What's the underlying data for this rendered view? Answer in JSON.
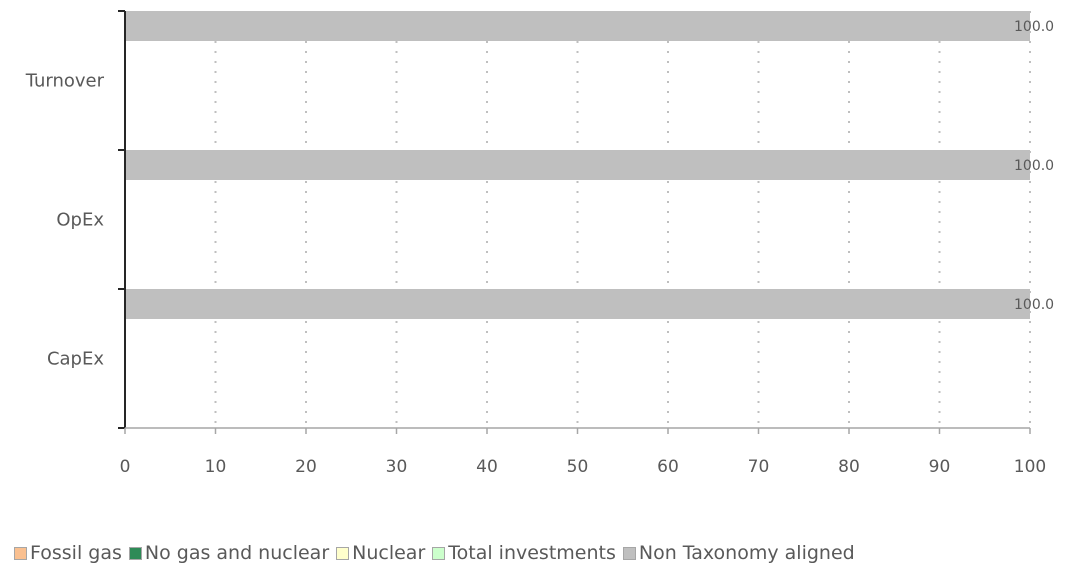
{
  "chart_data": {
    "type": "bar",
    "orientation": "horizontal",
    "stacked": true,
    "categories": [
      "Turnover",
      "OpEx",
      "CapEx"
    ],
    "series": [
      {
        "name": "Fossil gas",
        "color": "#fac090",
        "values": [
          0,
          0,
          0
        ]
      },
      {
        "name": "No gas and nuclear",
        "color": "#2e8b57",
        "values": [
          0,
          0,
          0
        ]
      },
      {
        "name": "Nuclear",
        "color": "#ffffcc",
        "values": [
          0,
          0,
          0
        ]
      },
      {
        "name": "Total investments",
        "color": "#ccffcc",
        "values": [
          0,
          0,
          0
        ]
      },
      {
        "name": "Non Taxonomy aligned",
        "color": "#bfbfbf",
        "values": [
          100,
          100,
          100
        ]
      }
    ],
    "data_labels": [
      "100.0",
      "100.0",
      "100.0"
    ],
    "xlim": [
      0,
      100
    ],
    "x_ticks": [
      0,
      10,
      20,
      30,
      40,
      50,
      60,
      70,
      80,
      90,
      100
    ],
    "grid": "vertical-dotted",
    "legend_position": "bottom"
  }
}
